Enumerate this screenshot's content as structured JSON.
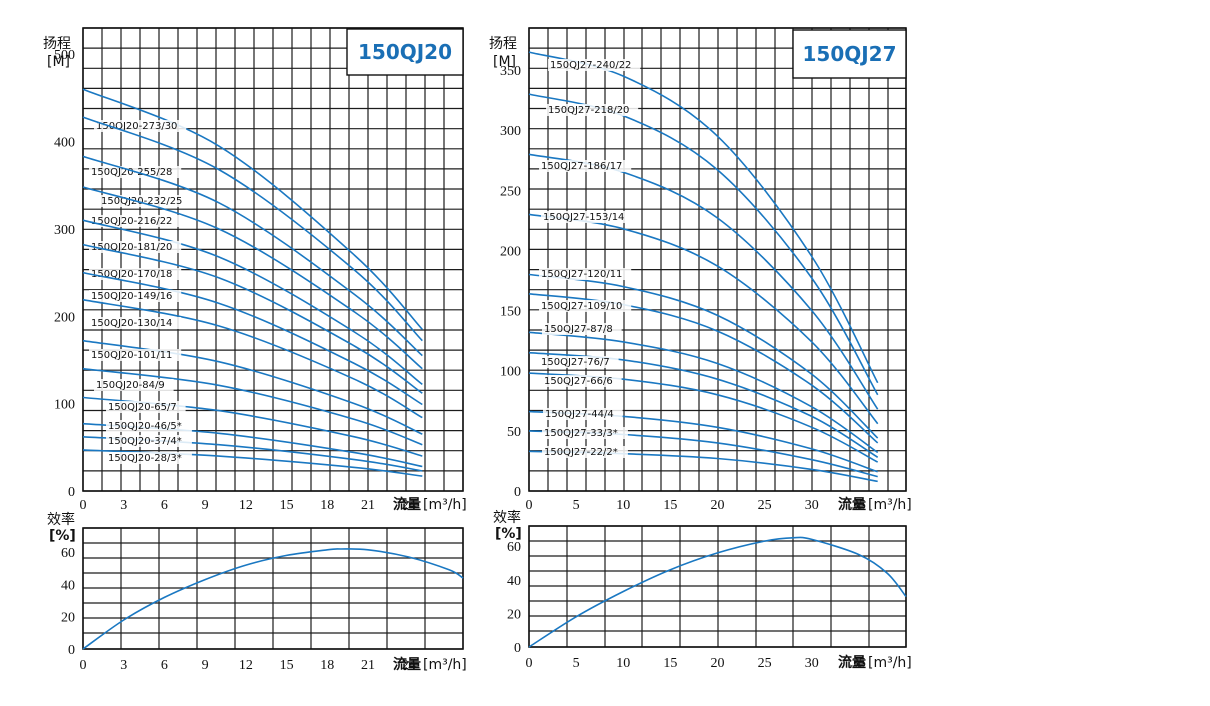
{
  "chart_data": [
    {
      "type": "line",
      "title": "150QJ20",
      "ylabel": "扬程",
      "yunit": "[M]",
      "xlabel": "流量",
      "xunit": "[m³/h]",
      "xlim": [
        0,
        28
      ],
      "ylim": [
        0,
        530
      ],
      "xticks": [
        0,
        3,
        6,
        9,
        12,
        15,
        18,
        21,
        24
      ],
      "yticks": [
        0,
        100,
        200,
        300,
        400,
        500
      ],
      "series": [
        {
          "name": "150QJ20-273/30",
          "x": [
            0,
            10,
            20,
            25
          ],
          "y": [
            460,
            395,
            270,
            185
          ]
        },
        {
          "name": "150QJ20-255/28",
          "x": [
            0,
            10,
            20,
            25
          ],
          "y": [
            428,
            368,
            253,
            172
          ]
        },
        {
          "name": "150QJ20-232/25",
          "x": [
            0,
            10,
            20,
            25
          ],
          "y": [
            383,
            330,
            225,
            155
          ]
        },
        {
          "name": "150QJ20-216/22",
          "x": [
            0,
            10,
            20,
            25
          ],
          "y": [
            348,
            300,
            205,
            140
          ]
        },
        {
          "name": "150QJ20-181/20",
          "x": [
            0,
            10,
            20,
            25
          ],
          "y": [
            310,
            268,
            182,
            122
          ]
        },
        {
          "name": "150QJ20-170/18",
          "x": [
            0,
            10,
            20,
            25
          ],
          "y": [
            282,
            244,
            166,
            112
          ]
        },
        {
          "name": "150QJ20-149/16",
          "x": [
            0,
            10,
            20,
            25
          ],
          "y": [
            250,
            215,
            146,
            99
          ]
        },
        {
          "name": "150QJ20-130/14",
          "x": [
            0,
            10,
            20,
            25
          ],
          "y": [
            219,
            189,
            128,
            84
          ]
        },
        {
          "name": "150QJ20-101/11",
          "x": [
            0,
            10,
            20,
            25
          ],
          "y": [
            172,
            148,
            100,
            65
          ]
        },
        {
          "name": "150QJ20-84/9",
          "x": [
            0,
            10,
            20,
            25
          ],
          "y": [
            140,
            121,
            82,
            53
          ]
        },
        {
          "name": "150QJ20-65/7",
          "x": [
            0,
            10,
            20,
            25
          ],
          "y": [
            107,
            92,
            62,
            40
          ]
        },
        {
          "name": "150QJ20-46/5*",
          "x": [
            0,
            10,
            20,
            25
          ],
          "y": [
            77,
            66,
            44,
            28
          ]
        },
        {
          "name": "150QJ20-37/4*",
          "x": [
            0,
            10,
            20,
            25
          ],
          "y": [
            62,
            53,
            36,
            23
          ]
        },
        {
          "name": "150QJ20-28/3*",
          "x": [
            0,
            10,
            20,
            25
          ],
          "y": [
            47,
            40,
            27,
            17
          ]
        }
      ],
      "efficiency": {
        "ylabel": "效率",
        "yunit": "[%]",
        "xlabel": "流量",
        "xunit": "[m³/h]",
        "ylim": [
          0,
          75
        ],
        "yticks": [
          0,
          20,
          40,
          60
        ],
        "xticks": [
          0,
          3,
          6,
          9,
          12,
          15,
          18,
          21,
          24
        ],
        "x": [
          0,
          3,
          6,
          9,
          12,
          15,
          18,
          19,
          21,
          24,
          27,
          28
        ],
        "y": [
          0,
          18,
          32,
          43,
          52,
          58,
          61.5,
          62,
          61.5,
          57,
          49,
          44
        ]
      }
    },
    {
      "type": "line",
      "title": "150QJ27",
      "ylabel": "扬程",
      "yunit": "[M]",
      "xlabel": "流量",
      "xunit": "[m³/h]",
      "xlim": [
        0,
        40
      ],
      "ylim": [
        0,
        385
      ],
      "xticks": [
        0,
        5,
        10,
        15,
        20,
        25,
        30,
        35
      ],
      "yticks": [
        0,
        50,
        100,
        150,
        200,
        250,
        300,
        350
      ],
      "series": [
        {
          "name": "150QJ27-240/22",
          "x": [
            0,
            10,
            20,
            30,
            37
          ],
          "y": [
            365,
            345,
            295,
            195,
            90
          ]
        },
        {
          "name": "150QJ27-218/20",
          "x": [
            0,
            10,
            20,
            30,
            37
          ],
          "y": [
            330,
            312,
            267,
            177,
            80
          ]
        },
        {
          "name": "150QJ27-186/17",
          "x": [
            0,
            10,
            20,
            30,
            37
          ],
          "y": [
            280,
            265,
            227,
            150,
            68
          ]
        },
        {
          "name": "150QJ27-153/14",
          "x": [
            0,
            10,
            20,
            30,
            37
          ],
          "y": [
            230,
            218,
            187,
            124,
            56
          ]
        },
        {
          "name": "150QJ27-120/11",
          "x": [
            0,
            10,
            20,
            30,
            37
          ],
          "y": [
            180,
            170,
            146,
            97,
            44
          ]
        },
        {
          "name": "150QJ27-109/10",
          "x": [
            0,
            10,
            20,
            30,
            37
          ],
          "y": [
            164,
            155,
            133,
            88,
            40
          ]
        },
        {
          "name": "150QJ27-87/8",
          "x": [
            0,
            10,
            20,
            30,
            37
          ],
          "y": [
            132,
            124,
            106,
            70,
            32
          ]
        },
        {
          "name": "150QJ27-76/7",
          "x": [
            0,
            10,
            20,
            30,
            37
          ],
          "y": [
            115,
            109,
            93,
            62,
            28
          ]
        },
        {
          "name": "150QJ27-66/6",
          "x": [
            0,
            10,
            20,
            30,
            37
          ],
          "y": [
            98,
            93,
            80,
            53,
            24
          ]
        },
        {
          "name": "150QJ27-44/4",
          "x": [
            0,
            10,
            20,
            30,
            37
          ],
          "y": [
            66,
            62,
            53,
            35,
            16
          ]
        },
        {
          "name": "150QJ27-33/3*",
          "x": [
            0,
            10,
            20,
            30,
            37
          ],
          "y": [
            50,
            47,
            40,
            26,
            12
          ]
        },
        {
          "name": "150QJ27-22/2*",
          "x": [
            0,
            10,
            20,
            30,
            37
          ],
          "y": [
            33,
            31,
            27,
            18,
            8
          ]
        }
      ],
      "efficiency": {
        "ylabel": "效率",
        "yunit": "[%]",
        "xlabel": "流量",
        "xunit": "[m³/h]",
        "ylim": [
          0,
          72
        ],
        "yticks": [
          0,
          20,
          40,
          60
        ],
        "xticks": [
          0,
          5,
          10,
          15,
          20,
          25,
          30,
          35
        ],
        "x": [
          0,
          5,
          10,
          15,
          20,
          25,
          28,
          30,
          35,
          38,
          40
        ],
        "y": [
          0,
          18,
          33,
          46,
          56,
          63,
          65,
          64,
          55,
          44,
          30
        ]
      }
    }
  ]
}
